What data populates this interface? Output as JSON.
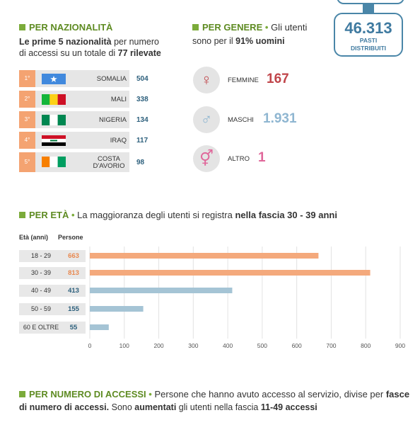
{
  "stat": {
    "value": "46.313",
    "label1": "PASTI",
    "label2": "DISTRIBUITI"
  },
  "nationality": {
    "title": "PER NAZIONALITÀ",
    "desc_1_bold": "Le prime 5 nazionalità",
    "desc_1_rest": " per numero",
    "desc_2_rest": "di accessi su un totale di ",
    "desc_2_bold": "77 rilevate",
    "rows": [
      {
        "rank": "1°",
        "name": "SOMALIA",
        "value": "504",
        "flag": "somalia-flag-icon"
      },
      {
        "rank": "2°",
        "name": "MALI",
        "value": "338",
        "flag": "mali-flag-icon"
      },
      {
        "rank": "3°",
        "name": "NIGERIA",
        "value": "134",
        "flag": "nigeria-flag-icon"
      },
      {
        "rank": "4°",
        "name": "IRAQ",
        "value": "117",
        "flag": "iraq-flag-icon"
      },
      {
        "rank": "5°",
        "name_line1": "COSTA",
        "name_line2": "D'AVORIO",
        "value": "98",
        "flag": "ivory-coast-flag-icon"
      }
    ]
  },
  "gender": {
    "title": "PER GENERE",
    "desc_1": "Gli utenti",
    "desc_2_rest": "sono per il ",
    "desc_2_bold": "91% uomini",
    "items": [
      {
        "label": "FEMMINE",
        "value": "167",
        "color": "#c0454a",
        "icon": "female-symbol-icon"
      },
      {
        "label": "MASCHI",
        "value": "1.931",
        "color": "#8fb6d1",
        "icon": "male-symbol-icon"
      },
      {
        "label": "ALTRO",
        "value": "1",
        "color": "#e0679a",
        "icon": "other-gender-symbol-icon"
      }
    ]
  },
  "age": {
    "title": "PER ETÀ",
    "desc_rest": "La maggioranza degli utenti si registra ",
    "desc_bold": "nella fascia 30 - 39 anni",
    "col1": "Età (anni)",
    "col2": "Persone"
  },
  "chart_data": {
    "type": "bar",
    "orientation": "horizontal",
    "categories": [
      "18 - 29",
      "30 - 39",
      "40 - 49",
      "50 - 59",
      "60 E OLTRE"
    ],
    "values": [
      663,
      813,
      413,
      155,
      55
    ],
    "value_labels": [
      "663",
      "813",
      "413",
      "155",
      "55"
    ],
    "bar_colors": [
      "#f4a97c",
      "#f4a97c",
      "#a5c4d5",
      "#a5c4d5",
      "#a5c4d5"
    ],
    "value_colors": [
      "#e8884f",
      "#e8884f",
      "#2c5f7c",
      "#2c5f7c",
      "#2c5f7c"
    ],
    "xlim": [
      0,
      900
    ],
    "xticks": [
      0,
      100,
      200,
      300,
      400,
      500,
      600,
      700,
      800,
      900
    ],
    "grid": true
  },
  "accesses": {
    "title": "PER NUMERO DI ACCESSI",
    "desc_1_rest": "Persone che hanno avuto accesso al servizio, divise per ",
    "desc_1_bold": "fasce",
    "desc_2_bold_a": "di numero di accessi.",
    "desc_2_rest_a": " Sono ",
    "desc_2_bold_b": "aumentati",
    "desc_2_rest_b": " gli utenti nella fascia ",
    "desc_2_bold_c": "11-49 accessi"
  }
}
